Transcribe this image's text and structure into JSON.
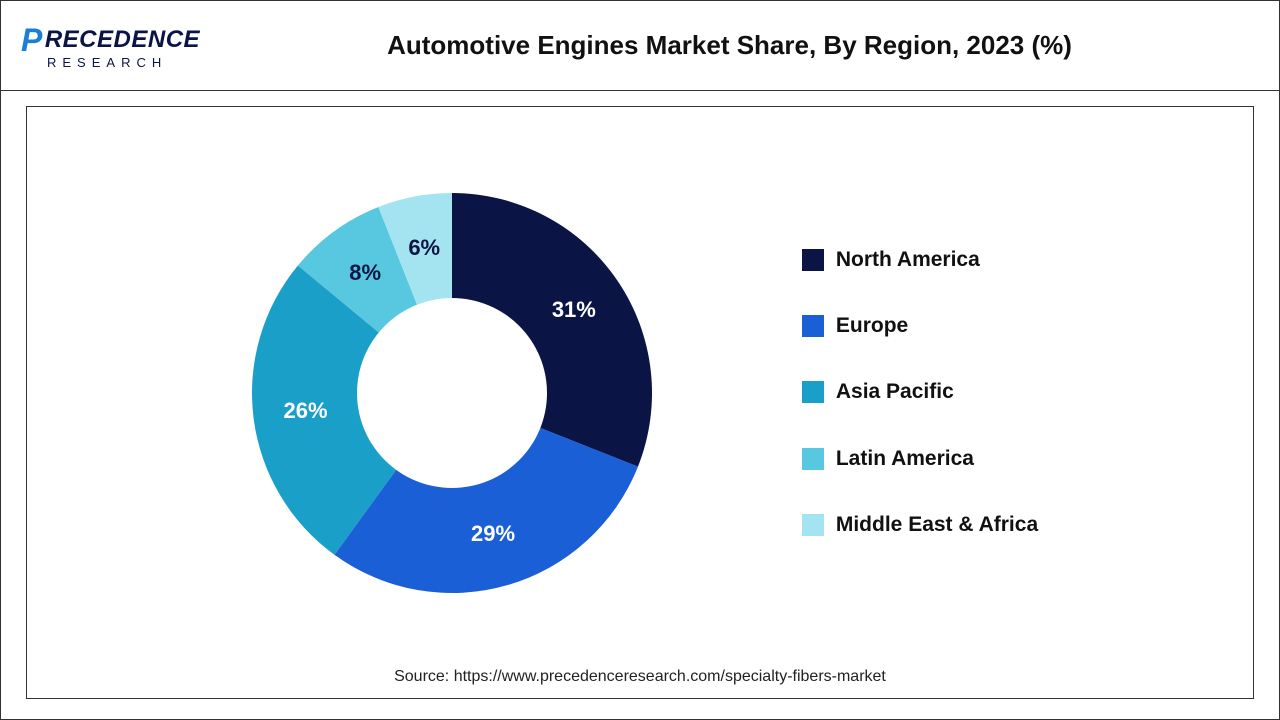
{
  "header": {
    "logo_brand_first": "P",
    "logo_brand_rest": "RECEDENCE",
    "logo_sub": "RESEARCH",
    "title": "Automotive Engines Market Share, By Region, 2023 (%)"
  },
  "chart": {
    "type": "donut",
    "background_color": "#ffffff",
    "outer_radius": 200,
    "inner_radius": 95,
    "start_angle_deg": 0,
    "slices": [
      {
        "label": "North America",
        "value": 31,
        "color": "#0a1445",
        "text_color": "#ffffff"
      },
      {
        "label": "Europe",
        "value": 29,
        "color": "#1a5fd6",
        "text_color": "#ffffff"
      },
      {
        "label": "Asia Pacific",
        "value": 26,
        "color": "#1a9fc9",
        "text_color": "#ffffff"
      },
      {
        "label": "Latin America",
        "value": 8,
        "color": "#57c8e0",
        "text_color": "#0a1445"
      },
      {
        "label": "Middle East & Africa",
        "value": 6,
        "color": "#a4e3f0",
        "text_color": "#0a1445"
      }
    ],
    "label_suffix": "%",
    "label_fontsize": 22,
    "legend": {
      "position": "right",
      "fontsize": 21,
      "font_weight": "bold",
      "swatch_size": 22
    }
  },
  "source": {
    "prefix": "Source: ",
    "url": "https://www.precedenceresearch.com/specialty-fibers-market"
  }
}
